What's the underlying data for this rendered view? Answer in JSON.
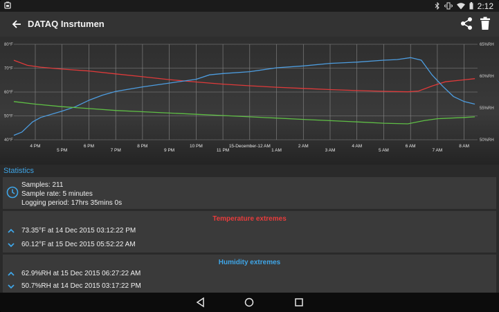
{
  "status_bar": {
    "time": "2:12",
    "icons": [
      "notification-icon",
      "bluetooth-icon",
      "vibrate-icon",
      "wifi-icon",
      "battery-icon"
    ]
  },
  "app_bar": {
    "title": "DATAQ Insrtumen",
    "back_icon": "back-arrow-icon",
    "actions": [
      "share-icon",
      "delete-icon"
    ]
  },
  "chart_data": {
    "type": "line",
    "x_tick_labels": [
      "4 PM",
      "5 PM",
      "6 PM",
      "7 PM",
      "8 PM",
      "9 PM",
      "10 PM",
      "11 PM",
      "15-December-12 AM",
      "1 AM",
      "2 AM",
      "3 AM",
      "4 AM",
      "5 AM",
      "6 AM",
      "7 AM",
      "8 AM"
    ],
    "x_range_hours": [
      15.2,
      32.5
    ],
    "left_axis": {
      "labels": [
        "80°F",
        "70°F",
        "60°F",
        "50°F",
        "40°F"
      ],
      "range": [
        40,
        80
      ]
    },
    "right_axis": {
      "labels": [
        "65%RH",
        "60%RH",
        "55%RH",
        "50%RH"
      ],
      "range": [
        50,
        65
      ]
    },
    "grid": true,
    "series": [
      {
        "color": "#e03a3a",
        "axis": "left",
        "points": [
          [
            15.2,
            73.3
          ],
          [
            15.7,
            71.2
          ],
          [
            16.2,
            70.4
          ],
          [
            17,
            69.6
          ],
          [
            18,
            68.8
          ],
          [
            19,
            67.6
          ],
          [
            20,
            66.4
          ],
          [
            21,
            65.2
          ],
          [
            22,
            64.2
          ],
          [
            23,
            63.3
          ],
          [
            24,
            62.6
          ],
          [
            25,
            62
          ],
          [
            26,
            61.5
          ],
          [
            27,
            61
          ],
          [
            28,
            60.6
          ],
          [
            29,
            60.3
          ],
          [
            29.9,
            60.1
          ],
          [
            30.3,
            60.4
          ],
          [
            30.8,
            62.5
          ],
          [
            31.3,
            64.3
          ],
          [
            32,
            65.1
          ],
          [
            32.4,
            65.6
          ]
        ]
      },
      {
        "color": "#4d9de0",
        "axis": "right",
        "points": [
          [
            15.2,
            50.7
          ],
          [
            15.5,
            51.2
          ],
          [
            15.9,
            52.8
          ],
          [
            16.2,
            53.5
          ],
          [
            17,
            54.5
          ],
          [
            17.5,
            55.2
          ],
          [
            18,
            56.2
          ],
          [
            18.5,
            57
          ],
          [
            19,
            57.6
          ],
          [
            20,
            58.3
          ],
          [
            21,
            58.9
          ],
          [
            22,
            59.5
          ],
          [
            22.5,
            60.2
          ],
          [
            23,
            60.4
          ],
          [
            24,
            60.7
          ],
          [
            25,
            61.3
          ],
          [
            26,
            61.6
          ],
          [
            27,
            62
          ],
          [
            28,
            62.2
          ],
          [
            29,
            62.5
          ],
          [
            29.5,
            62.6
          ],
          [
            30,
            62.9
          ],
          [
            30.4,
            62.5
          ],
          [
            30.8,
            60.2
          ],
          [
            31.2,
            58.4
          ],
          [
            31.6,
            56.8
          ],
          [
            32,
            56
          ],
          [
            32.4,
            55.6
          ]
        ]
      },
      {
        "color": "#5fbf45",
        "axis": "right",
        "points": [
          [
            15.2,
            56
          ],
          [
            16,
            55.6
          ],
          [
            17,
            55.2
          ],
          [
            18,
            54.9
          ],
          [
            19,
            54.6
          ],
          [
            20,
            54.4
          ],
          [
            21,
            54.2
          ],
          [
            22,
            54
          ],
          [
            23,
            53.8
          ],
          [
            24,
            53.6
          ],
          [
            25,
            53.4
          ],
          [
            26,
            53.2
          ],
          [
            27,
            53
          ],
          [
            28,
            52.8
          ],
          [
            29,
            52.6
          ],
          [
            29.9,
            52.5
          ],
          [
            30.5,
            53
          ],
          [
            31,
            53.3
          ],
          [
            32,
            53.5
          ],
          [
            32.4,
            53.6
          ]
        ]
      }
    ]
  },
  "statistics": {
    "title": "Statistics",
    "samples": "Samples: 211",
    "sample_rate": "Sample rate: 5 minutes",
    "logging_period": "Logging period: 17hrs 35mins 0s"
  },
  "temperature_extremes": {
    "heading": "Temperature extremes",
    "heading_color": "#e83c3c",
    "max": "73.35°F at 14 Dec 2015 03:12:22 PM",
    "min": "60.12°F at 15 Dec 2015 05:52:22 AM"
  },
  "humidity_extremes": {
    "heading": "Humidity extremes",
    "heading_color": "#3fa6e8",
    "max": "62.9%RH at 15 Dec 2015 06:27:22 AM",
    "min": "50.7%RH at 14 Dec 2015 03:17:22 PM"
  },
  "accent_color": "#3fa6e8",
  "nav_bar": {
    "icons": [
      "nav-back-icon",
      "nav-home-icon",
      "nav-recents-icon"
    ]
  }
}
